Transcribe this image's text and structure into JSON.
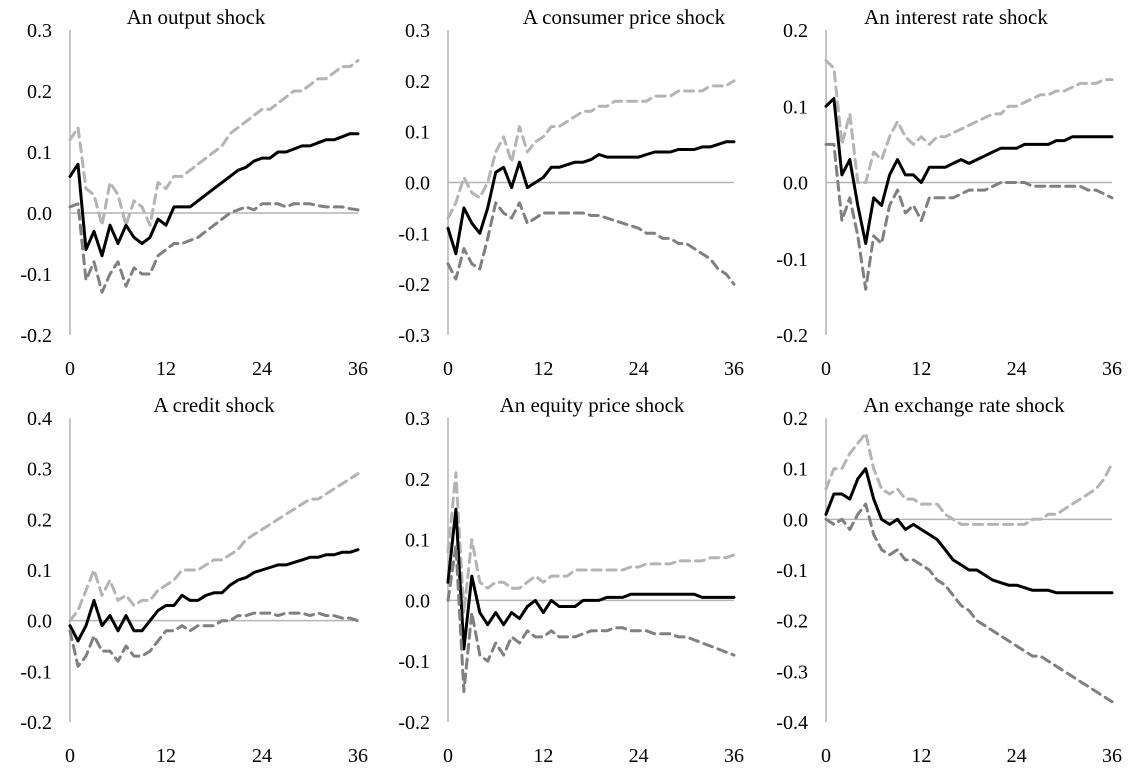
{
  "chart_data": [
    {
      "type": "line",
      "title": "An output shock",
      "x": [
        0,
        1,
        2,
        3,
        4,
        5,
        6,
        7,
        8,
        9,
        10,
        11,
        12,
        13,
        14,
        15,
        16,
        17,
        18,
        19,
        20,
        21,
        22,
        23,
        24,
        25,
        26,
        27,
        28,
        29,
        30,
        31,
        32,
        33,
        34,
        35,
        36
      ],
      "xticks": [
        0,
        12,
        24,
        36
      ],
      "ylim": [
        -0.2,
        0.3
      ],
      "yticks": [
        "-0.2",
        "-0.1",
        "0.0",
        "0.1",
        "0.2",
        "0.3"
      ],
      "series": [
        {
          "role": "upper",
          "values": [
            0.12,
            0.14,
            0.04,
            0.03,
            -0.02,
            0.05,
            0.03,
            -0.02,
            0.02,
            0.01,
            -0.02,
            0.05,
            0.04,
            0.06,
            0.06,
            0.07,
            0.08,
            0.09,
            0.1,
            0.11,
            0.13,
            0.14,
            0.15,
            0.16,
            0.17,
            0.17,
            0.18,
            0.19,
            0.2,
            0.2,
            0.21,
            0.22,
            0.22,
            0.23,
            0.24,
            0.24,
            0.25
          ]
        },
        {
          "role": "point",
          "values": [
            0.06,
            0.08,
            -0.06,
            -0.03,
            -0.07,
            -0.02,
            -0.05,
            -0.02,
            -0.04,
            -0.05,
            -0.04,
            -0.01,
            -0.02,
            0.01,
            0.01,
            0.01,
            0.02,
            0.03,
            0.04,
            0.05,
            0.06,
            0.07,
            0.075,
            0.085,
            0.09,
            0.09,
            0.1,
            0.1,
            0.105,
            0.11,
            0.11,
            0.115,
            0.12,
            0.12,
            0.125,
            0.13,
            0.13
          ]
        },
        {
          "role": "lower",
          "values": [
            0.01,
            0.015,
            -0.11,
            -0.08,
            -0.13,
            -0.1,
            -0.08,
            -0.12,
            -0.09,
            -0.1,
            -0.1,
            -0.07,
            -0.06,
            -0.05,
            -0.05,
            -0.045,
            -0.04,
            -0.03,
            -0.02,
            -0.01,
            0.0,
            0.005,
            0.01,
            0.005,
            0.015,
            0.015,
            0.015,
            0.01,
            0.015,
            0.015,
            0.015,
            0.012,
            0.01,
            0.01,
            0.01,
            0.007,
            0.005
          ]
        }
      ]
    },
    {
      "type": "line",
      "title": "A consumer price shock",
      "x": [
        0,
        1,
        2,
        3,
        4,
        5,
        6,
        7,
        8,
        9,
        10,
        11,
        12,
        13,
        14,
        15,
        16,
        17,
        18,
        19,
        20,
        21,
        22,
        23,
        24,
        25,
        26,
        27,
        28,
        29,
        30,
        31,
        32,
        33,
        34,
        35,
        36
      ],
      "xticks": [
        0,
        12,
        24,
        36
      ],
      "ylim": [
        -0.3,
        0.3
      ],
      "yticks": [
        "-0.3",
        "-0.2",
        "-0.1",
        "0.0",
        "0.1",
        "0.2",
        "0.3"
      ],
      "series": [
        {
          "role": "upper",
          "values": [
            -0.07,
            -0.04,
            0.01,
            -0.02,
            -0.03,
            0.0,
            0.06,
            0.09,
            0.04,
            0.11,
            0.06,
            0.08,
            0.09,
            0.11,
            0.11,
            0.12,
            0.13,
            0.14,
            0.14,
            0.15,
            0.15,
            0.16,
            0.16,
            0.16,
            0.16,
            0.16,
            0.17,
            0.17,
            0.17,
            0.18,
            0.18,
            0.18,
            0.18,
            0.19,
            0.19,
            0.19,
            0.2
          ]
        },
        {
          "role": "point",
          "values": [
            -0.09,
            -0.14,
            -0.05,
            -0.08,
            -0.1,
            -0.05,
            0.02,
            0.03,
            -0.01,
            0.04,
            -0.01,
            0.0,
            0.01,
            0.03,
            0.03,
            0.035,
            0.04,
            0.04,
            0.045,
            0.055,
            0.05,
            0.05,
            0.05,
            0.05,
            0.05,
            0.055,
            0.06,
            0.06,
            0.06,
            0.065,
            0.065,
            0.065,
            0.07,
            0.07,
            0.075,
            0.08,
            0.08
          ]
        },
        {
          "role": "lower",
          "values": [
            -0.16,
            -0.19,
            -0.13,
            -0.16,
            -0.17,
            -0.11,
            -0.04,
            -0.06,
            -0.07,
            -0.04,
            -0.08,
            -0.07,
            -0.06,
            -0.06,
            -0.06,
            -0.06,
            -0.06,
            -0.06,
            -0.065,
            -0.065,
            -0.07,
            -0.075,
            -0.08,
            -0.085,
            -0.09,
            -0.1,
            -0.1,
            -0.11,
            -0.11,
            -0.12,
            -0.12,
            -0.13,
            -0.14,
            -0.15,
            -0.17,
            -0.18,
            -0.2
          ]
        }
      ]
    },
    {
      "type": "line",
      "title": "An interest rate shock",
      "x": [
        0,
        1,
        2,
        3,
        4,
        5,
        6,
        7,
        8,
        9,
        10,
        11,
        12,
        13,
        14,
        15,
        16,
        17,
        18,
        19,
        20,
        21,
        22,
        23,
        24,
        25,
        26,
        27,
        28,
        29,
        30,
        31,
        32,
        33,
        34,
        35,
        36
      ],
      "xticks": [
        0,
        12,
        24,
        36
      ],
      "ylim": [
        -0.2,
        0.2
      ],
      "yticks": [
        "-0.2",
        "-0.1",
        "0.0",
        "0.1",
        "0.2"
      ],
      "series": [
        {
          "role": "upper",
          "values": [
            0.16,
            0.15,
            0.05,
            0.09,
            0.0,
            0.0,
            0.04,
            0.03,
            0.06,
            0.08,
            0.06,
            0.05,
            0.06,
            0.05,
            0.06,
            0.06,
            0.065,
            0.07,
            0.075,
            0.08,
            0.085,
            0.09,
            0.09,
            0.1,
            0.1,
            0.105,
            0.11,
            0.115,
            0.115,
            0.12,
            0.12,
            0.125,
            0.13,
            0.13,
            0.13,
            0.135,
            0.135
          ]
        },
        {
          "role": "point",
          "values": [
            0.1,
            0.11,
            0.01,
            0.03,
            -0.03,
            -0.08,
            -0.02,
            -0.03,
            0.01,
            0.03,
            0.01,
            0.01,
            0.0,
            0.02,
            0.02,
            0.02,
            0.025,
            0.03,
            0.025,
            0.03,
            0.035,
            0.04,
            0.045,
            0.045,
            0.045,
            0.05,
            0.05,
            0.05,
            0.05,
            0.055,
            0.055,
            0.06,
            0.06,
            0.06,
            0.06,
            0.06,
            0.06
          ]
        },
        {
          "role": "lower",
          "values": [
            0.05,
            0.05,
            -0.05,
            -0.02,
            -0.07,
            -0.14,
            -0.07,
            -0.08,
            -0.03,
            -0.01,
            -0.04,
            -0.03,
            -0.05,
            -0.02,
            -0.02,
            -0.02,
            -0.02,
            -0.015,
            -0.01,
            -0.01,
            -0.01,
            -0.005,
            0.0,
            0.0,
            0.0,
            0.0,
            -0.005,
            -0.005,
            -0.005,
            -0.005,
            -0.005,
            -0.005,
            -0.005,
            -0.01,
            -0.01,
            -0.015,
            -0.02
          ]
        }
      ]
    },
    {
      "type": "line",
      "title": "A credit shock",
      "x": [
        0,
        1,
        2,
        3,
        4,
        5,
        6,
        7,
        8,
        9,
        10,
        11,
        12,
        13,
        14,
        15,
        16,
        17,
        18,
        19,
        20,
        21,
        22,
        23,
        24,
        25,
        26,
        27,
        28,
        29,
        30,
        31,
        32,
        33,
        34,
        35,
        36
      ],
      "xticks": [
        0,
        12,
        24,
        36
      ],
      "ylim": [
        -0.2,
        0.4
      ],
      "yticks": [
        "-0.2",
        "-0.1",
        "0.0",
        "0.1",
        "0.2",
        "0.3",
        "0.4"
      ],
      "series": [
        {
          "role": "upper",
          "values": [
            0.0,
            0.02,
            0.06,
            0.1,
            0.05,
            0.08,
            0.04,
            0.05,
            0.03,
            0.04,
            0.04,
            0.06,
            0.07,
            0.08,
            0.1,
            0.1,
            0.1,
            0.11,
            0.12,
            0.12,
            0.13,
            0.14,
            0.16,
            0.17,
            0.18,
            0.19,
            0.2,
            0.21,
            0.22,
            0.23,
            0.24,
            0.24,
            0.25,
            0.26,
            0.27,
            0.28,
            0.29
          ]
        },
        {
          "role": "point",
          "values": [
            -0.01,
            -0.04,
            -0.01,
            0.04,
            -0.01,
            0.01,
            -0.02,
            0.01,
            -0.02,
            -0.02,
            0.0,
            0.02,
            0.03,
            0.03,
            0.05,
            0.04,
            0.04,
            0.05,
            0.055,
            0.055,
            0.07,
            0.08,
            0.085,
            0.095,
            0.1,
            0.105,
            0.11,
            0.11,
            0.115,
            0.12,
            0.125,
            0.125,
            0.13,
            0.13,
            0.135,
            0.135,
            0.14
          ]
        },
        {
          "role": "lower",
          "values": [
            -0.02,
            -0.09,
            -0.07,
            -0.03,
            -0.06,
            -0.06,
            -0.08,
            -0.05,
            -0.07,
            -0.07,
            -0.06,
            -0.04,
            -0.02,
            -0.02,
            -0.01,
            -0.02,
            -0.01,
            -0.01,
            -0.01,
            0.0,
            0.0,
            0.01,
            0.01,
            0.015,
            0.015,
            0.015,
            0.01,
            0.015,
            0.015,
            0.015,
            0.01,
            0.015,
            0.01,
            0.01,
            0.005,
            0.005,
            0.0
          ]
        }
      ]
    },
    {
      "type": "line",
      "title": "An equity price shock",
      "x": [
        0,
        1,
        2,
        3,
        4,
        5,
        6,
        7,
        8,
        9,
        10,
        11,
        12,
        13,
        14,
        15,
        16,
        17,
        18,
        19,
        20,
        21,
        22,
        23,
        24,
        25,
        26,
        27,
        28,
        29,
        30,
        31,
        32,
        33,
        34,
        35,
        36
      ],
      "xticks": [
        0,
        12,
        24,
        36
      ],
      "ylim": [
        -0.2,
        0.3
      ],
      "yticks": [
        "-0.2",
        "-0.1",
        "0.0",
        "0.1",
        "0.2",
        "0.3"
      ],
      "series": [
        {
          "role": "upper",
          "values": [
            0.08,
            0.21,
            -0.02,
            0.1,
            0.03,
            0.02,
            0.03,
            0.03,
            0.02,
            0.02,
            0.03,
            0.04,
            0.03,
            0.04,
            0.04,
            0.04,
            0.05,
            0.05,
            0.05,
            0.05,
            0.05,
            0.05,
            0.05,
            0.055,
            0.055,
            0.06,
            0.06,
            0.06,
            0.06,
            0.065,
            0.065,
            0.065,
            0.065,
            0.07,
            0.07,
            0.07,
            0.075
          ]
        },
        {
          "role": "point",
          "values": [
            0.03,
            0.15,
            -0.08,
            0.04,
            -0.02,
            -0.04,
            -0.02,
            -0.04,
            -0.02,
            -0.03,
            -0.01,
            0.0,
            -0.02,
            0.0,
            -0.01,
            -0.01,
            -0.01,
            0.0,
            0.0,
            0.0,
            0.005,
            0.005,
            0.005,
            0.01,
            0.01,
            0.01,
            0.01,
            0.01,
            0.01,
            0.01,
            0.01,
            0.01,
            0.005,
            0.005,
            0.005,
            0.005,
            0.005
          ]
        },
        {
          "role": "lower",
          "values": [
            0.0,
            0.09,
            -0.15,
            -0.02,
            -0.09,
            -0.1,
            -0.07,
            -0.09,
            -0.06,
            -0.07,
            -0.05,
            -0.06,
            -0.06,
            -0.05,
            -0.06,
            -0.06,
            -0.06,
            -0.055,
            -0.05,
            -0.05,
            -0.05,
            -0.045,
            -0.045,
            -0.05,
            -0.05,
            -0.05,
            -0.055,
            -0.055,
            -0.055,
            -0.06,
            -0.06,
            -0.065,
            -0.07,
            -0.075,
            -0.08,
            -0.085,
            -0.09
          ]
        }
      ]
    },
    {
      "type": "line",
      "title": "An exchange rate shock",
      "x": [
        0,
        1,
        2,
        3,
        4,
        5,
        6,
        7,
        8,
        9,
        10,
        11,
        12,
        13,
        14,
        15,
        16,
        17,
        18,
        19,
        20,
        21,
        22,
        23,
        24,
        25,
        26,
        27,
        28,
        29,
        30,
        31,
        32,
        33,
        34,
        35,
        36
      ],
      "xticks": [
        0,
        12,
        24,
        36
      ],
      "ylim": [
        -0.4,
        0.2
      ],
      "yticks": [
        "-0.4",
        "-0.3",
        "-0.2",
        "-0.1",
        "0.0",
        "0.1",
        "0.2"
      ],
      "series": [
        {
          "role": "upper",
          "values": [
            0.06,
            0.1,
            0.1,
            0.13,
            0.15,
            0.17,
            0.1,
            0.06,
            0.05,
            0.06,
            0.04,
            0.04,
            0.03,
            0.03,
            0.03,
            0.01,
            0.0,
            -0.01,
            -0.01,
            -0.01,
            -0.01,
            -0.01,
            -0.01,
            -0.01,
            -0.01,
            -0.01,
            0.0,
            0.0,
            0.01,
            0.01,
            0.02,
            0.03,
            0.04,
            0.05,
            0.06,
            0.08,
            0.11
          ]
        },
        {
          "role": "point",
          "values": [
            0.01,
            0.05,
            0.05,
            0.04,
            0.08,
            0.1,
            0.04,
            0.0,
            -0.01,
            0.0,
            -0.02,
            -0.01,
            -0.02,
            -0.03,
            -0.04,
            -0.06,
            -0.08,
            -0.09,
            -0.1,
            -0.1,
            -0.11,
            -0.12,
            -0.125,
            -0.13,
            -0.13,
            -0.135,
            -0.14,
            -0.14,
            -0.14,
            -0.145,
            -0.145,
            -0.145,
            -0.145,
            -0.145,
            -0.145,
            -0.145,
            -0.145
          ]
        },
        {
          "role": "lower",
          "values": [
            0.0,
            -0.01,
            0.0,
            -0.02,
            0.01,
            0.03,
            -0.03,
            -0.06,
            -0.07,
            -0.06,
            -0.08,
            -0.08,
            -0.09,
            -0.1,
            -0.12,
            -0.13,
            -0.15,
            -0.17,
            -0.18,
            -0.2,
            -0.21,
            -0.22,
            -0.23,
            -0.24,
            -0.25,
            -0.26,
            -0.27,
            -0.27,
            -0.28,
            -0.29,
            -0.3,
            -0.31,
            -0.32,
            -0.33,
            -0.34,
            -0.35,
            -0.36
          ]
        }
      ]
    }
  ],
  "colors": {
    "point": "#000000",
    "upper": "#b4b4b4",
    "lower": "#808080",
    "axis": "#b4b4b4",
    "text": "#000000"
  }
}
